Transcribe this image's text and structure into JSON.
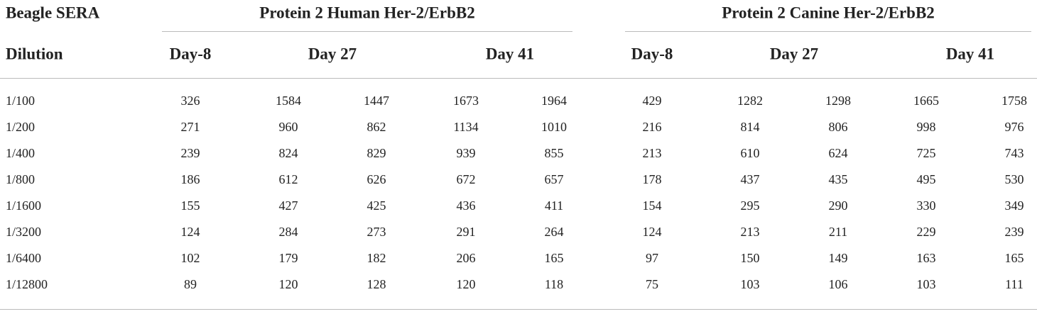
{
  "header": {
    "label_top": "Beagle SERA",
    "label_bottom": "Dilution",
    "groups": [
      {
        "title": "Protein 2 Human Her-2/ErbB2",
        "days": [
          "Day-8",
          "Day 27",
          "Day 41"
        ]
      },
      {
        "title": "Protein 2 Canine Her-2/ErbB2",
        "days": [
          "Day-8",
          "Day 27",
          "Day 41"
        ]
      }
    ]
  },
  "rows": [
    {
      "dilution": "1/100",
      "values": [
        326,
        1584,
        1447,
        1673,
        1964,
        429,
        1282,
        1298,
        1665,
        1758
      ]
    },
    {
      "dilution": "1/200",
      "values": [
        271,
        960,
        862,
        1134,
        1010,
        216,
        814,
        806,
        998,
        976
      ]
    },
    {
      "dilution": "1/400",
      "values": [
        239,
        824,
        829,
        939,
        855,
        213,
        610,
        624,
        725,
        743
      ]
    },
    {
      "dilution": "1/800",
      "values": [
        186,
        612,
        626,
        672,
        657,
        178,
        437,
        435,
        495,
        530
      ]
    },
    {
      "dilution": "1/1600",
      "values": [
        155,
        427,
        425,
        436,
        411,
        154,
        295,
        290,
        330,
        349
      ]
    },
    {
      "dilution": "1/3200",
      "values": [
        124,
        284,
        273,
        291,
        264,
        124,
        213,
        211,
        229,
        239
      ]
    },
    {
      "dilution": "1/6400",
      "values": [
        102,
        179,
        182,
        206,
        165,
        97,
        150,
        149,
        163,
        165
      ]
    },
    {
      "dilution": "1/12800",
      "values": [
        89,
        120,
        128,
        120,
        118,
        75,
        103,
        106,
        103,
        111
      ]
    }
  ]
}
